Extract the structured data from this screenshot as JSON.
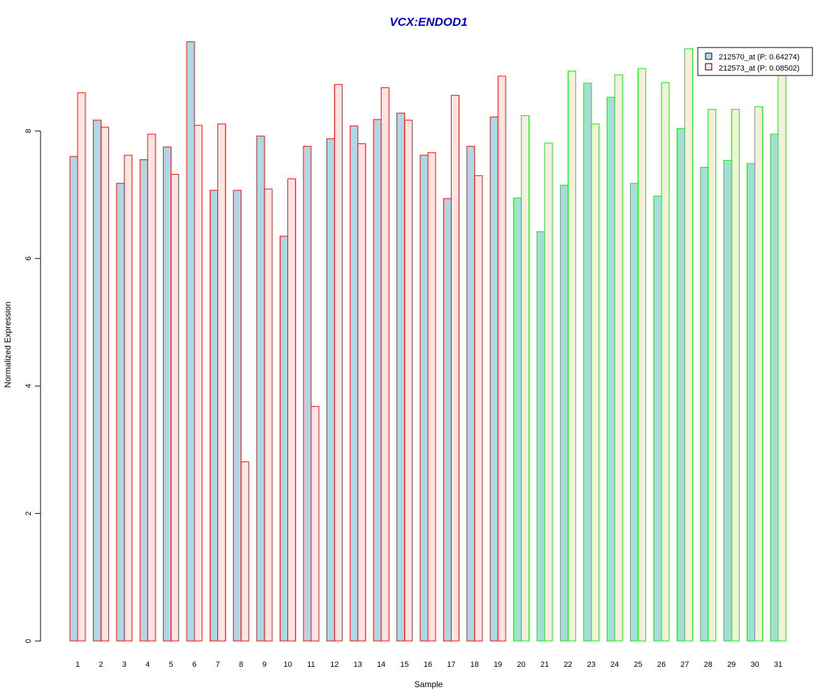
{
  "chart_data": {
    "type": "bar",
    "title": "VCX:ENDOD1",
    "xlabel": "Sample",
    "ylabel": "Normalized Expression",
    "ylim": [
      0,
      9.5
    ],
    "yticks": [
      "0",
      "2",
      "4",
      "6",
      "8"
    ],
    "categories": [
      "1",
      "2",
      "3",
      "4",
      "5",
      "6",
      "7",
      "8",
      "9",
      "10",
      "11",
      "12",
      "13",
      "14",
      "15",
      "16",
      "17",
      "18",
      "19",
      "20",
      "21",
      "22",
      "23",
      "24",
      "25",
      "26",
      "27",
      "28",
      "29",
      "30",
      "31"
    ],
    "group_border_colors": [
      "#ff0000",
      "#ff0000",
      "#ff0000",
      "#ff0000",
      "#ff0000",
      "#ff0000",
      "#ff0000",
      "#ff0000",
      "#ff0000",
      "#ff0000",
      "#ff0000",
      "#ff0000",
      "#ff0000",
      "#ff0000",
      "#ff0000",
      "#ff0000",
      "#ff0000",
      "#ff0000",
      "#ff0000",
      "#00ee00",
      "#00ee00",
      "#00ee00",
      "#00ee00",
      "#00ee00",
      "#00ee00",
      "#00ee00",
      "#00ee00",
      "#00ee00",
      "#00ee00",
      "#00ee00",
      "#00ee00"
    ],
    "series": [
      {
        "name": "212570_at (P: 0.64274)",
        "fill": "#add8e6",
        "values": [
          7.6,
          8.17,
          7.18,
          7.55,
          7.75,
          9.4,
          7.07,
          7.07,
          7.92,
          6.35,
          7.76,
          7.88,
          8.08,
          8.18,
          8.28,
          7.62,
          6.94,
          7.76,
          8.22,
          6.95,
          6.42,
          7.15,
          8.75,
          8.53,
          7.18,
          6.98,
          8.04,
          7.43,
          7.54,
          7.49,
          7.95
        ]
      },
      {
        "name": "212573_at (P: 0.08502)",
        "fill": "#ffe4e1",
        "fill_alt": "#f5f0dc",
        "values": [
          8.6,
          8.06,
          7.62,
          7.95,
          7.32,
          8.09,
          8.11,
          2.81,
          7.09,
          7.25,
          3.68,
          8.73,
          7.8,
          8.68,
          8.17,
          7.66,
          8.56,
          7.3,
          8.86,
          8.24,
          7.81,
          8.94,
          8.11,
          8.88,
          8.98,
          8.76,
          9.29,
          8.34,
          8.34,
          8.38,
          8.88
        ]
      }
    ],
    "legend_position": "top-right",
    "grid": false
  },
  "colors": {
    "title": "#0000cd",
    "axis": "#000000",
    "legend_border": "#000000"
  }
}
